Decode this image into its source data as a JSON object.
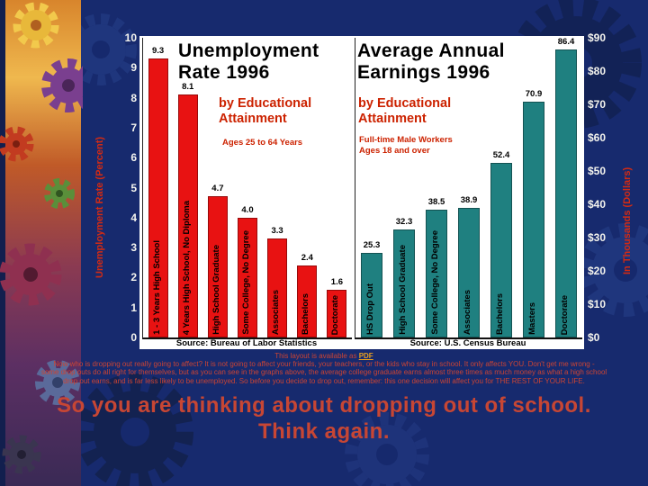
{
  "colors": {
    "background": "#172a6e",
    "bar_red": "#e81212",
    "bar_teal": "#1f8080",
    "accent_red_text": "#cc2200",
    "headline_red": "#c74634",
    "pdf_link": "#e8a020"
  },
  "chart_data": [
    {
      "type": "bar",
      "title": "Unemployment Rate 1996",
      "subtitle": "by Educational Attainment",
      "note": "Ages 25 to 64 Years",
      "categories": [
        "1 - 3 Years High School",
        "4 Years High School, No Diploma",
        "High School Graduate",
        "Some College, No Degree",
        "Associates",
        "Bachelors",
        "Doctorate"
      ],
      "values": [
        9.3,
        8.1,
        4.7,
        4.0,
        3.3,
        2.4,
        1.6
      ],
      "value_labels": [
        "9.3",
        "8.1",
        "4.7",
        "4.0",
        "3.3",
        "2.4",
        "1.6"
      ],
      "ylabel": "Unemployment Rate (Percent)",
      "ylim": [
        0,
        10
      ],
      "yticks": [
        {
          "label": "10",
          "v": 10
        },
        {
          "label": "9",
          "v": 9
        },
        {
          "label": "8",
          "v": 8
        },
        {
          "label": "7",
          "v": 7
        },
        {
          "label": "6",
          "v": 6
        },
        {
          "label": "5",
          "v": 5
        },
        {
          "label": "4",
          "v": 4
        },
        {
          "label": "3",
          "v": 3
        },
        {
          "label": "2",
          "v": 2
        },
        {
          "label": "1",
          "v": 1
        },
        {
          "label": "0",
          "v": 0
        }
      ],
      "bar_color": "#e81212",
      "source": "Source: Bureau of Labor Statistics",
      "legend": "none",
      "grid": "off"
    },
    {
      "type": "bar",
      "title": "Average Annual Earnings 1996",
      "subtitle": "by Educational Attainment",
      "note": "Full-time Male Workers Ages 18 and over",
      "categories": [
        "HS Drop Out",
        "High School Graduate",
        "Some College, No Degree",
        "Associates",
        "Bachelors",
        "Masters",
        "Doctorate"
      ],
      "values": [
        25.3,
        32.3,
        38.5,
        38.9,
        52.4,
        70.9,
        86.4
      ],
      "value_labels": [
        "25.3",
        "32.3",
        "38.5",
        "38.9",
        "52.4",
        "70.9",
        "86.4"
      ],
      "ylabel": "In Thousands (Dollars)",
      "ylim": [
        0,
        90
      ],
      "yticks": [
        {
          "label": "$90",
          "v": 90
        },
        {
          "label": "$80",
          "v": 80
        },
        {
          "label": "$70",
          "v": 70
        },
        {
          "label": "$60",
          "v": 60
        },
        {
          "label": "$50",
          "v": 50
        },
        {
          "label": "$40",
          "v": 40
        },
        {
          "label": "$30",
          "v": 30
        },
        {
          "label": "$20",
          "v": 20
        },
        {
          "label": "$10",
          "v": 10
        },
        {
          "label": "$0",
          "v": 0
        }
      ],
      "bar_color": "#1f8080",
      "source": "Source: U.S. Census Bureau",
      "legend": "none",
      "grid": "off"
    }
  ],
  "slide": {
    "pdf_line_prefix": "This layout is available as ",
    "pdf_link_label": "PDF",
    "paragraph_lines": [
      "Now who is dropping out really going to affect?  It is not going to affect your friends, your teachers, or the kids who stay in school.  It only affects YOU.  Don't get me wrong -",
      "some drop outs do all right for themselves, but as you can see in the graphs above, the average college graduate earns almost three times as much money as what a high school",
      "drop out earns, and is far less likely to be unemployed.  So before you decide to drop out, remember: this one decision will affect you for THE REST OF YOUR LIFE."
    ],
    "headline_line1": "So you are thinking about dropping out of school.",
    "headline_line2": "Think again."
  }
}
